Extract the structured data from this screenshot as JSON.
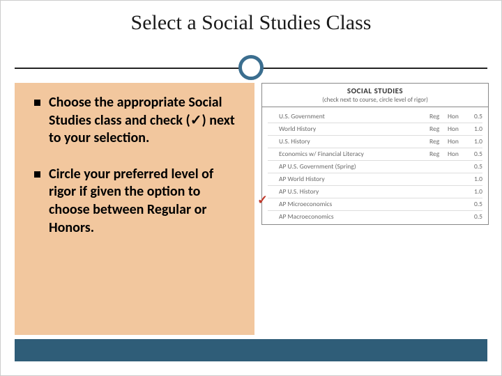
{
  "title": "Select a Social Studies Class",
  "bullets": [
    "Choose the appropriate Social Studies class and check (✓) next to your selection.",
    "Circle your preferred level of rigor if given the option to choose between Regular or Honors."
  ],
  "table": {
    "heading": "SOCIAL STUDIES",
    "subheading": "(check next to course, circle level of rigor)",
    "courses": [
      {
        "name": "U.S. Government",
        "reg": "Reg",
        "hon": "Hon",
        "credit": "0.5"
      },
      {
        "name": "World History",
        "reg": "Reg",
        "hon": "Hon",
        "credit": "1.0"
      },
      {
        "name": "U.S. History",
        "reg": "Reg",
        "hon": "Hon",
        "credit": "1.0"
      },
      {
        "name": "Economics w/ Financial Literacy",
        "reg": "Reg",
        "hon": "Hon",
        "credit": "0.5"
      },
      {
        "name": "AP U.S. Government (Spring)",
        "reg": "",
        "hon": "",
        "credit": "0.5"
      },
      {
        "name": "AP World History",
        "reg": "",
        "hon": "",
        "credit": "1.0"
      },
      {
        "name": "AP U.S. History",
        "reg": "",
        "hon": "",
        "credit": "1.0"
      },
      {
        "name": "AP Microeconomics",
        "reg": "",
        "hon": "",
        "credit": "0.5"
      },
      {
        "name": "AP Macroeconomics",
        "reg": "",
        "hon": "",
        "credit": "0.5"
      }
    ]
  },
  "checkmark_glyph": "✓",
  "colors": {
    "accent_circle": "#3b6e8f",
    "bottom_band": "#2f5d78",
    "left_panel_bg": "#f2c79e",
    "checkmark": "#c0392b"
  }
}
